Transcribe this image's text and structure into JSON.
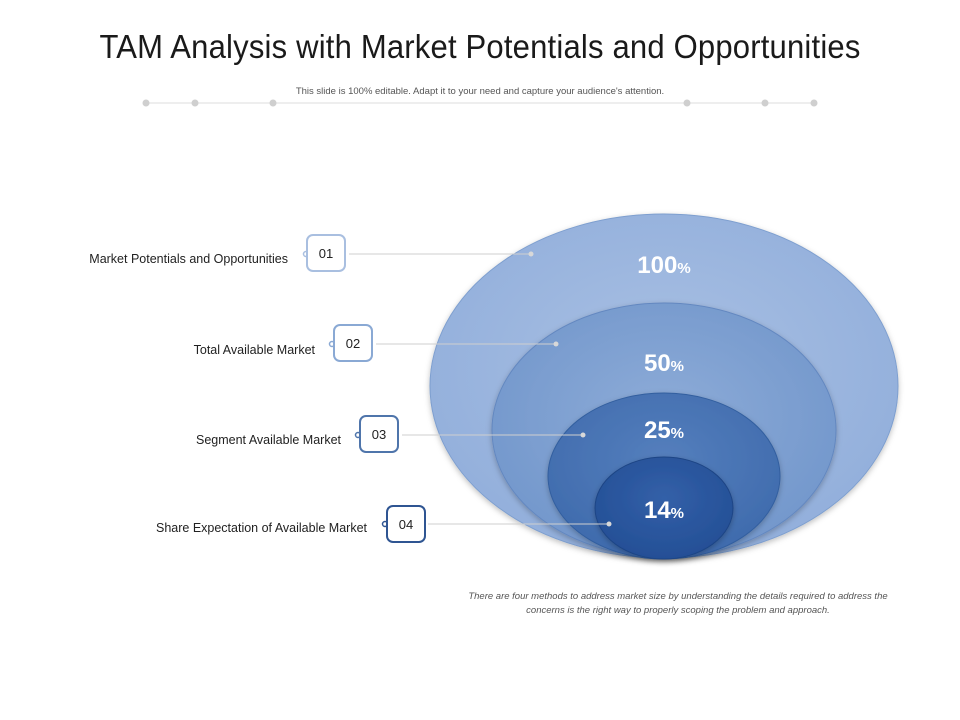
{
  "header": {
    "title": "TAM Analysis with Market Potentials and Opportunities",
    "subtitle": "This slide is 100% editable. Adapt it to your need and capture your audience's attention."
  },
  "items": [
    {
      "number": "01",
      "label": "Market Potentials and Opportunities",
      "percent": "100",
      "unit": "%",
      "color": "#9db5dc"
    },
    {
      "number": "02",
      "label": "Total Available Market",
      "percent": "50",
      "unit": "%",
      "color": "#7fa1d0"
    },
    {
      "number": "03",
      "label": "Segment Available Market",
      "percent": "25",
      "unit": "%",
      "color": "#4a76b5"
    },
    {
      "number": "04",
      "label": "Share Expectation of Available Market",
      "percent": "14",
      "unit": "%",
      "color": "#2b58a0"
    }
  ],
  "footer": {
    "note": "There are four methods to address market size by understanding the details required to address the concerns is the right way to properly scoping the problem and approach."
  },
  "colors": {
    "box_border_1": "#a9bfe0",
    "box_border_2": "#8aa9d4",
    "box_border_3": "#4f75ab",
    "box_border_4": "#2f5592",
    "connector": "#cccccc",
    "dots": "#cfcfcf"
  }
}
